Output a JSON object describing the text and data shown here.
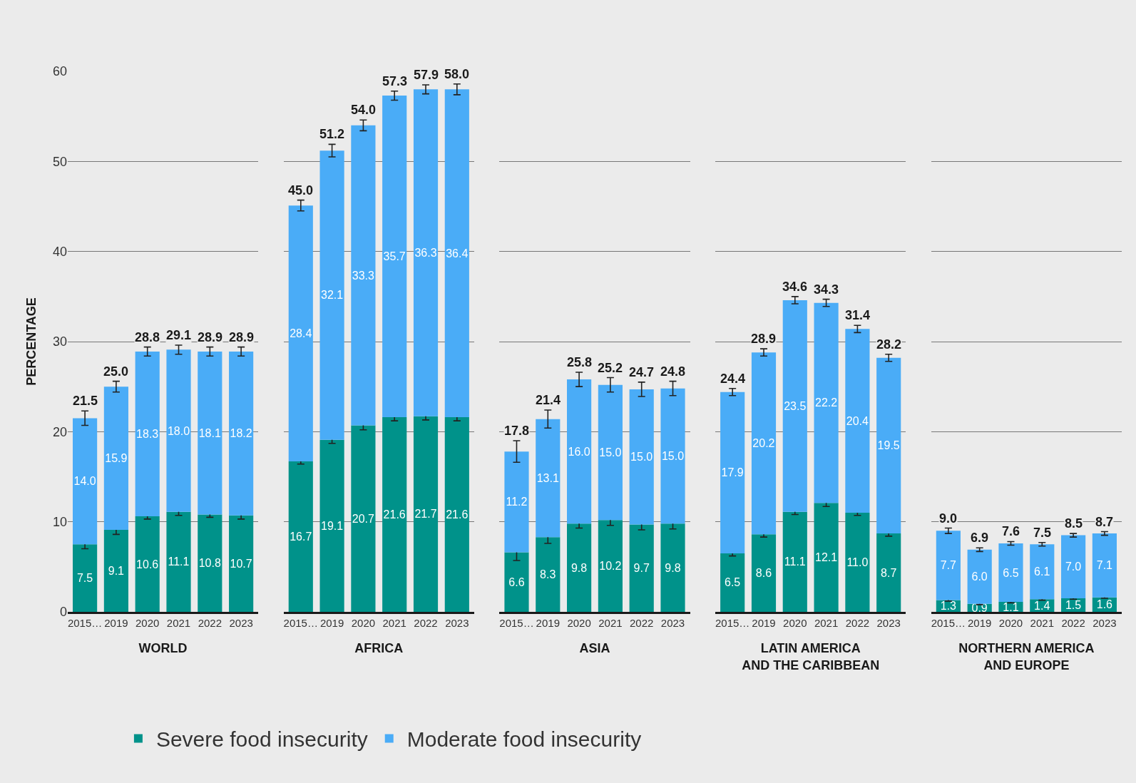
{
  "chart_data": [
    {
      "type": "bar",
      "stacked": true,
      "xlabel": "WORLD",
      "ylabel": "PERCENTAGE",
      "categories": [
        "2015…",
        "2019",
        "2020",
        "2021",
        "2022",
        "2023"
      ],
      "ylim": [
        0,
        60
      ],
      "yticks": [
        0,
        10,
        20,
        30,
        40,
        50,
        60
      ],
      "grid": "y",
      "legend": "bottom",
      "series": [
        {
          "name": "Severe food insecurity",
          "color": "#00928a",
          "values": [
            7.5,
            9.1,
            10.6,
            11.1,
            10.8,
            10.7
          ],
          "value_labels": [
            "7.5",
            "9.1",
            "10.6",
            "11.1",
            "10.8",
            "10.7"
          ],
          "errors": [
            0.5,
            0.5,
            0.3,
            0.4,
            0.3,
            0.4
          ]
        },
        {
          "name": "Moderate food insecurity",
          "color": "#4aacf7",
          "values": [
            14.0,
            15.9,
            18.3,
            18.0,
            18.1,
            18.2
          ],
          "value_labels": [
            "14.0",
            "15.9",
            "18.3",
            "18.0",
            "18.1",
            "18.2"
          ],
          "errors": [
            0.8,
            0.6,
            0.5,
            0.5,
            0.5,
            0.5
          ]
        }
      ],
      "totals": [
        "21.5",
        "25.0",
        "28.8",
        "29.1",
        "28.9",
        "28.9"
      ]
    },
    {
      "type": "bar",
      "stacked": true,
      "xlabel": "AFRICA",
      "categories": [
        "2015…",
        "2019",
        "2020",
        "2021",
        "2022",
        "2023"
      ],
      "ylim": [
        0,
        60
      ],
      "yticks": [
        0,
        10,
        20,
        30,
        40,
        50,
        60
      ],
      "grid": "y",
      "tick_labels": "x",
      "series": [
        {
          "color": "#00928a",
          "values": [
            16.7,
            19.1,
            20.7,
            21.6,
            21.7,
            21.6
          ],
          "value_labels": [
            "16.7",
            "19.1",
            "20.7",
            "21.6",
            "21.7",
            "21.6"
          ],
          "errors": [
            0.3,
            0.4,
            0.5,
            0.4,
            0.4,
            0.4
          ]
        },
        {
          "color": "#4aacf7",
          "values": [
            28.4,
            32.1,
            33.3,
            35.7,
            36.3,
            36.4
          ],
          "value_labels": [
            "28.4",
            "32.1",
            "33.3",
            "35.7",
            "36.3",
            "36.4"
          ],
          "errors": [
            0.6,
            0.7,
            0.6,
            0.5,
            0.5,
            0.6
          ]
        }
      ],
      "totals": [
        "45.0",
        "51.2",
        "54.0",
        "57.3",
        "57.9",
        "58.0"
      ]
    },
    {
      "type": "bar",
      "stacked": true,
      "xlabel": "ASIA",
      "categories": [
        "2015…",
        "2019",
        "2020",
        "2021",
        "2022",
        "2023"
      ],
      "ylim": [
        0,
        60
      ],
      "yticks": [
        0,
        10,
        20,
        30,
        40,
        50,
        60
      ],
      "grid": "y",
      "tick_labels": "x",
      "series": [
        {
          "color": "#00928a",
          "values": [
            6.6,
            8.3,
            9.8,
            10.2,
            9.7,
            9.8
          ],
          "value_labels": [
            "6.6",
            "8.3",
            "9.8",
            "10.2",
            "9.7",
            "9.8"
          ],
          "errors": [
            0.9,
            0.7,
            0.5,
            0.6,
            0.6,
            0.6
          ]
        },
        {
          "color": "#4aacf7",
          "values": [
            11.2,
            13.1,
            16.0,
            15.0,
            15.0,
            15.0
          ],
          "value_labels": [
            "11.2",
            "13.1",
            "16.0",
            "15.0",
            "15.0",
            "15.0"
          ],
          "errors": [
            1.2,
            1.0,
            0.8,
            0.8,
            0.8,
            0.8
          ]
        }
      ],
      "totals": [
        "17.8",
        "21.4",
        "25.8",
        "25.2",
        "24.7",
        "24.8"
      ]
    },
    {
      "type": "bar",
      "stacked": true,
      "xlabel": "LATIN AMERICA AND THE CARIBBEAN",
      "categories": [
        "2015…",
        "2019",
        "2020",
        "2021",
        "2022",
        "2023"
      ],
      "ylim": [
        0,
        60
      ],
      "yticks": [
        0,
        10,
        20,
        30,
        40,
        50,
        60
      ],
      "grid": "y",
      "tick_labels": "x",
      "series": [
        {
          "color": "#00928a",
          "values": [
            6.5,
            8.6,
            11.1,
            12.1,
            11.0,
            8.7
          ],
          "value_labels": [
            "6.5",
            "8.6",
            "11.1",
            "12.1",
            "11.0",
            "8.7"
          ],
          "errors": [
            0.3,
            0.3,
            0.3,
            0.4,
            0.3,
            0.3
          ]
        },
        {
          "color": "#4aacf7",
          "values": [
            17.9,
            20.2,
            23.5,
            22.2,
            20.4,
            19.5
          ],
          "value_labels": [
            "17.9",
            "20.2",
            "23.5",
            "22.2",
            "20.4",
            "19.5"
          ],
          "errors": [
            0.4,
            0.4,
            0.4,
            0.4,
            0.4,
            0.4
          ]
        }
      ],
      "totals": [
        "24.4",
        "28.9",
        "34.6",
        "34.3",
        "31.4",
        "28.2"
      ]
    },
    {
      "type": "bar",
      "stacked": true,
      "xlabel": "NORTHERN AMERICA AND EUROPE",
      "categories": [
        "2015…",
        "2019",
        "2020",
        "2021",
        "2022",
        "2023"
      ],
      "ylim": [
        0,
        60
      ],
      "yticks": [
        0,
        10,
        20,
        30,
        40,
        50,
        60
      ],
      "grid": "y",
      "tick_labels": "x",
      "series": [
        {
          "color": "#00928a",
          "values": [
            1.3,
            0.9,
            1.1,
            1.4,
            1.5,
            1.6
          ],
          "value_labels": [
            "1.3",
            "0.9",
            "1.1",
            "1.4",
            "1.5",
            "1.6"
          ],
          "errors": [
            0.1,
            0.1,
            0.1,
            0.1,
            0.1,
            0.1
          ]
        },
        {
          "color": "#4aacf7",
          "values": [
            7.7,
            6.0,
            6.5,
            6.1,
            7.0,
            7.1
          ],
          "value_labels": [
            "7.7",
            "6.0",
            "6.5",
            "6.1",
            "7.0",
            "7.1"
          ],
          "errors": [
            0.3,
            0.2,
            0.2,
            0.2,
            0.2,
            0.2
          ]
        }
      ],
      "totals": [
        "9.0",
        "6.9",
        "7.6",
        "7.5",
        "8.5",
        "8.7"
      ]
    }
  ]
}
